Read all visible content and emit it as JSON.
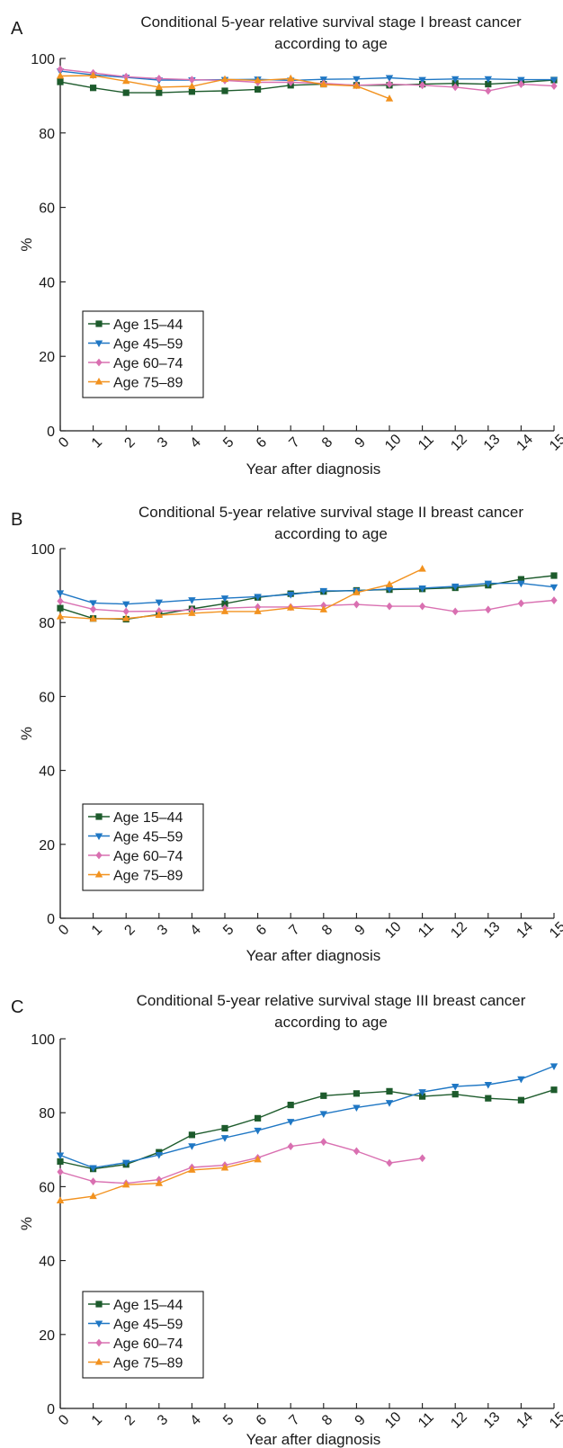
{
  "chart_data": [
    {
      "type": "line",
      "panel": "A",
      "title": "Conditional 5-year relative survival stage I breast cancer according to age",
      "title_lines": [
        "Conditional 5-year relative survival stage I breast cancer",
        "according to age"
      ],
      "xlabel": "Year after diagnosis",
      "ylabel": "%",
      "xlim": [
        0,
        15
      ],
      "ylim": [
        0,
        100
      ],
      "x_ticks": [
        "0",
        "1",
        "2",
        "3",
        "4",
        "5",
        "6",
        "7",
        "8",
        "9",
        "10",
        "11",
        "12",
        "13",
        "14",
        "15"
      ],
      "y_ticks": [
        "0",
        "20",
        "40",
        "60",
        "80",
        "100"
      ],
      "grid": false,
      "legend_position": "bottom-left",
      "series": [
        {
          "name": "Age 15–44",
          "color": "#1d5b2c",
          "marker": "square",
          "x": [
            0,
            1,
            2,
            3,
            4,
            5,
            6,
            7,
            8,
            9,
            10,
            11,
            12,
            13,
            14,
            15
          ],
          "values": [
            93.7,
            92.1,
            90.8,
            90.8,
            91.1,
            91.3,
            91.7,
            92.8,
            93.1,
            92.8,
            92.8,
            93.1,
            93.3,
            93.1,
            93.6,
            94.2
          ]
        },
        {
          "name": "Age 45–59",
          "color": "#1f77c4",
          "marker": "triangle-down",
          "x": [
            0,
            1,
            2,
            3,
            4,
            5,
            6,
            7,
            8,
            9,
            10,
            11,
            12,
            13,
            14,
            15
          ],
          "values": [
            96.6,
            95.6,
            94.9,
            94.2,
            94.2,
            94.3,
            94.4,
            94.1,
            94.4,
            94.5,
            94.8,
            94.3,
            94.5,
            94.5,
            94.3,
            94.3
          ]
        },
        {
          "name": "Age 60–74",
          "color": "#d970b1",
          "marker": "diamond",
          "x": [
            0,
            1,
            2,
            3,
            4,
            5,
            6,
            7,
            8,
            9,
            10,
            11,
            12,
            13,
            14,
            15
          ],
          "values": [
            97.1,
            96.1,
            95.1,
            94.6,
            94.3,
            94.1,
            93.6,
            93.6,
            93.3,
            92.8,
            93.1,
            92.8,
            92.3,
            91.3,
            93.1,
            92.6
          ]
        },
        {
          "name": "Age 75–89",
          "color": "#f2921f",
          "marker": "triangle-up",
          "x": [
            0,
            1,
            2,
            3,
            4,
            5,
            6,
            7,
            8,
            9,
            10
          ],
          "values": [
            95.3,
            95.4,
            93.9,
            92.3,
            92.5,
            94.4,
            94.1,
            94.6,
            93.0,
            92.6,
            89.2
          ]
        }
      ]
    },
    {
      "type": "line",
      "panel": "B",
      "title": "Conditional 5-year relative survival stage II breast cancer according to age",
      "title_lines": [
        "Conditional 5-year relative survival stage II breast cancer",
        "according to age"
      ],
      "xlabel": "Year after diagnosis",
      "ylabel": "%",
      "xlim": [
        0,
        15
      ],
      "ylim": [
        0,
        100
      ],
      "x_ticks": [
        "0",
        "1",
        "2",
        "3",
        "4",
        "5",
        "6",
        "7",
        "8",
        "9",
        "10",
        "11",
        "12",
        "13",
        "14",
        "15"
      ],
      "y_ticks": [
        "0",
        "20",
        "40",
        "60",
        "80",
        "100"
      ],
      "grid": false,
      "legend_position": "bottom-left",
      "series": [
        {
          "name": "Age 15–44",
          "color": "#1d5b2c",
          "marker": "square",
          "x": [
            0,
            1,
            2,
            3,
            4,
            5,
            6,
            7,
            8,
            9,
            10,
            11,
            12,
            13,
            14,
            15
          ],
          "values": [
            83.9,
            81.1,
            80.9,
            82.2,
            83.7,
            85.1,
            86.8,
            87.8,
            88.4,
            88.7,
            88.9,
            89.1,
            89.4,
            90.1,
            91.7,
            92.7
          ]
        },
        {
          "name": "Age 45–59",
          "color": "#1f77c4",
          "marker": "triangle-down",
          "x": [
            0,
            1,
            2,
            3,
            4,
            5,
            6,
            7,
            8,
            9,
            10,
            11,
            12,
            13,
            14,
            15
          ],
          "values": [
            88.0,
            85.3,
            85.0,
            85.5,
            86.1,
            86.6,
            87.0,
            87.6,
            88.6,
            88.6,
            89.1,
            89.3,
            89.8,
            90.6,
            90.6,
            89.6
          ]
        },
        {
          "name": "Age 60–74",
          "color": "#d970b1",
          "marker": "diamond",
          "x": [
            0,
            1,
            2,
            3,
            4,
            5,
            6,
            7,
            8,
            9,
            10,
            11,
            12,
            13,
            14,
            15
          ],
          "values": [
            85.8,
            83.6,
            83.0,
            83.1,
            83.4,
            83.9,
            84.2,
            84.2,
            84.6,
            84.9,
            84.4,
            84.4,
            83.0,
            83.5,
            85.2,
            86.0
          ]
        },
        {
          "name": "Age 75–89",
          "color": "#f2921f",
          "marker": "triangle-up",
          "x": [
            0,
            1,
            2,
            3,
            4,
            5,
            6,
            7,
            8,
            9,
            10,
            11
          ],
          "values": [
            81.6,
            81.0,
            81.1,
            82.0,
            82.5,
            83.0,
            83.0,
            84.0,
            83.5,
            88.1,
            90.3,
            94.5
          ]
        }
      ]
    },
    {
      "type": "line",
      "panel": "C",
      "title": "Conditional 5-year relative survival stage III breast cancer according to age",
      "title_lines": [
        "Conditional 5-year relative survival stage III breast cancer",
        "according to age"
      ],
      "xlabel": "Year after diagnosis",
      "ylabel": "%",
      "xlim": [
        0,
        15
      ],
      "ylim": [
        0,
        100
      ],
      "x_ticks": [
        "0",
        "1",
        "2",
        "3",
        "4",
        "5",
        "6",
        "7",
        "8",
        "9",
        "10",
        "11",
        "12",
        "13",
        "14",
        "15"
      ],
      "y_ticks": [
        "0",
        "20",
        "40",
        "60",
        "80",
        "100"
      ],
      "grid": false,
      "legend_position": "bottom-left",
      "series": [
        {
          "name": "Age 15–44",
          "color": "#1d5b2c",
          "marker": "square",
          "x": [
            0,
            1,
            2,
            3,
            4,
            5,
            6,
            7,
            8,
            9,
            10,
            11,
            12,
            13,
            14,
            15
          ],
          "values": [
            66.8,
            64.8,
            66.0,
            69.3,
            74.0,
            75.8,
            78.5,
            82.1,
            84.6,
            85.2,
            85.8,
            84.4,
            85.0,
            83.9,
            83.4,
            86.2
          ]
        },
        {
          "name": "Age 45–59",
          "color": "#1f77c4",
          "marker": "triangle-down",
          "x": [
            0,
            1,
            2,
            3,
            4,
            5,
            6,
            7,
            8,
            9,
            10,
            11,
            12,
            13,
            14,
            15
          ],
          "values": [
            68.5,
            65.1,
            66.5,
            68.6,
            71.0,
            73.2,
            75.2,
            77.6,
            79.7,
            81.4,
            82.7,
            85.6,
            87.1,
            87.6,
            89.1,
            92.6
          ]
        },
        {
          "name": "Age 60–74",
          "color": "#d970b1",
          "marker": "diamond",
          "x": [
            0,
            1,
            2,
            3,
            4,
            5,
            6,
            7,
            8,
            9,
            10,
            11
          ],
          "values": [
            64.0,
            61.4,
            60.9,
            61.9,
            65.2,
            65.8,
            67.8,
            70.9,
            72.1,
            69.6,
            66.4,
            67.7
          ]
        },
        {
          "name": "Age 75–89",
          "color": "#f2921f",
          "marker": "triangle-up",
          "x": [
            0,
            1,
            2,
            3,
            4,
            5,
            6
          ],
          "values": [
            56.2,
            57.4,
            60.5,
            60.9,
            64.5,
            65.1,
            67.3
          ]
        }
      ]
    }
  ]
}
